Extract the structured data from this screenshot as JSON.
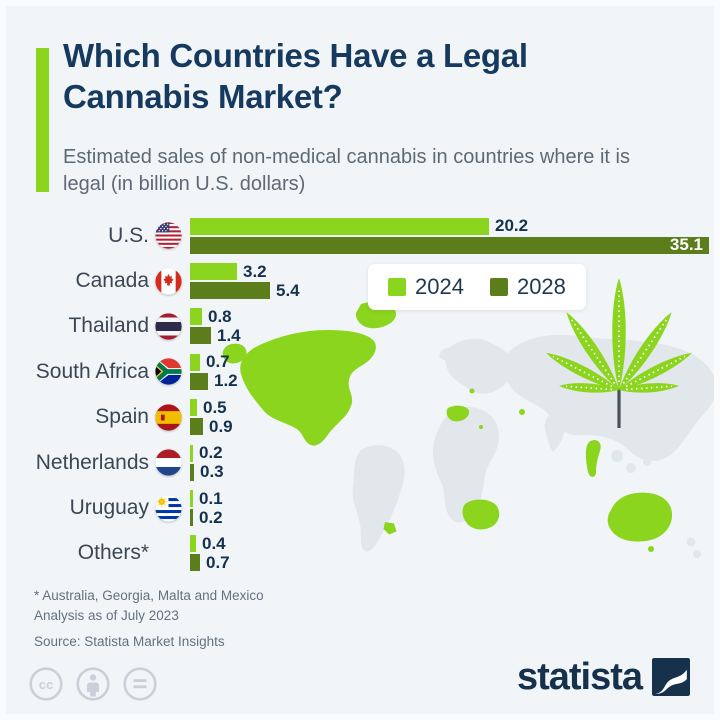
{
  "header": {
    "title": "Which Countries Have a Legal Cannabis Market?",
    "subtitle": "Estimated sales of non-medical cannabis in countries where it is legal (in billion U.S. dollars)"
  },
  "legend": {
    "items": [
      {
        "label": "2024",
        "color": "#8cd51f"
      },
      {
        "label": "2028",
        "color": "#5c7d1c"
      }
    ]
  },
  "chart_data": {
    "type": "bar",
    "orientation": "horizontal",
    "title": "Which Countries Have a Legal Cannabis Market?",
    "unit": "billion U.S. dollars",
    "categories": [
      "U.S.",
      "Canada",
      "Thailand",
      "South Africa",
      "Spain",
      "Netherlands",
      "Uruguay",
      "Others*"
    ],
    "series": [
      {
        "name": "2024",
        "color": "#8cd51f",
        "values": [
          20.2,
          3.2,
          0.8,
          0.7,
          0.5,
          0.2,
          0.1,
          0.4
        ]
      },
      {
        "name": "2028",
        "color": "#5c7d1c",
        "values": [
          35.1,
          5.4,
          1.4,
          1.2,
          0.9,
          0.3,
          0.2,
          0.7
        ]
      }
    ],
    "xlim": [
      0,
      35.1
    ],
    "value_labels": true,
    "legend_position": "inset-top-right",
    "grid": false
  },
  "rows": [
    {
      "label": "U.S.",
      "flag": "us",
      "flag_icon": "us-flag-icon",
      "v2024": "20.2",
      "v2028": "35.1",
      "inside": "2028"
    },
    {
      "label": "Canada",
      "flag": "canada",
      "flag_icon": "canada-flag-icon",
      "v2024": "3.2",
      "v2028": "5.4",
      "inside": null
    },
    {
      "label": "Thailand",
      "flag": "thailand",
      "flag_icon": "thailand-flag-icon",
      "v2024": "0.8",
      "v2028": "1.4",
      "inside": null
    },
    {
      "label": "South Africa",
      "flag": "southafrica",
      "flag_icon": "south-africa-flag-icon",
      "v2024": "0.7",
      "v2028": "1.2",
      "inside": null
    },
    {
      "label": "Spain",
      "flag": "spain",
      "flag_icon": "spain-flag-icon",
      "v2024": "0.5",
      "v2028": "0.9",
      "inside": null
    },
    {
      "label": "Netherlands",
      "flag": "netherlands",
      "flag_icon": "netherlands-flag-icon",
      "v2024": "0.2",
      "v2028": "0.3",
      "inside": null
    },
    {
      "label": "Uruguay",
      "flag": "uruguay",
      "flag_icon": "uruguay-flag-icon",
      "v2024": "0.1",
      "v2028": "0.2",
      "inside": null
    },
    {
      "label": "Others*",
      "flag": null,
      "flag_icon": null,
      "v2024": "0.4",
      "v2028": "0.7",
      "inside": null
    }
  ],
  "footnotes": {
    "line1": "* Australia, Georgia, Malta and Mexico",
    "line2": "Analysis as of July 2023",
    "source": "Source: Statista Market Insights"
  },
  "branding": {
    "logo_text": "statista"
  },
  "license": {
    "icons": [
      "cc-icon",
      "attribution-icon",
      "no-derivatives-icon"
    ]
  },
  "colors": {
    "background": "#f2f5f7",
    "accent_green": "#8cd51f",
    "series_2024": "#8cd51f",
    "series_2028": "#5c7d1c",
    "title_navy": "#163a5f",
    "map_highlight": "#8cd51f",
    "map_base": "#e2e7eb"
  }
}
